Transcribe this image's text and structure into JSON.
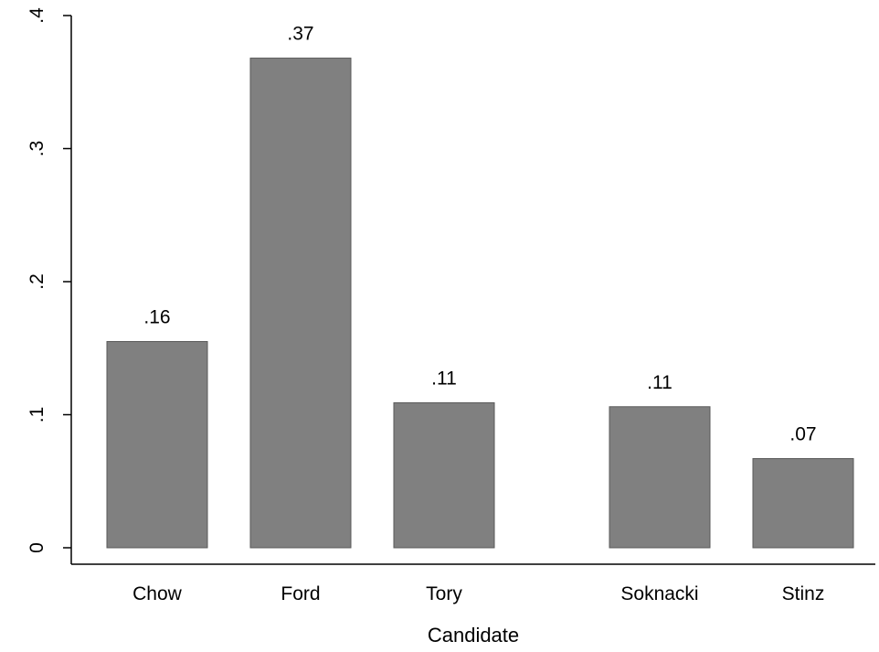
{
  "chart_data": {
    "type": "bar",
    "title": "",
    "xlabel": "Candidate",
    "ylabel": "",
    "ylim": [
      0,
      0.4
    ],
    "yticks": [
      0,
      0.1,
      0.2,
      0.3,
      0.4
    ],
    "ytick_labels": [
      "0",
      ".1",
      ".2",
      ".3",
      ".4"
    ],
    "grid": false,
    "bar_color": "#808080",
    "bar_edge_color": "#595959",
    "categories": [
      "Chow",
      "Ford",
      "Tory",
      "Soknacki",
      "Stinz"
    ],
    "values": [
      0.155,
      0.368,
      0.109,
      0.106,
      0.067
    ],
    "data_labels": [
      ".16",
      ".37",
      ".11",
      ".11",
      ".07"
    ]
  }
}
